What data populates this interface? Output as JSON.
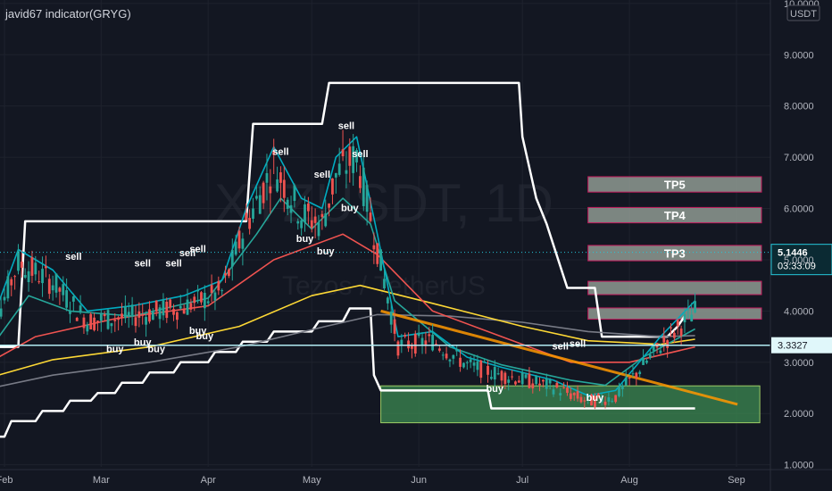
{
  "header": {
    "indicator_title": "javid67 indicator(GRYG)"
  },
  "watermark": {
    "symbol": "XTZUSDT, 1D",
    "subtitle": "Tezos / TetherUS"
  },
  "chart_data": {
    "type": "candlestick",
    "symbol": "XTZUSDT",
    "timeframe": "1D",
    "currency": "USDT",
    "ylim": [
      0.75,
      10.05
    ],
    "y_ticks": [
      "10.0000",
      "9.0000",
      "8.0000",
      "7.0000",
      "6.0000",
      "5.0000",
      "4.0000",
      "3.0000",
      "2.0000",
      "1.0000"
    ],
    "x_ticks": [
      "Feb",
      "Mar",
      "Apr",
      "May",
      "Jun",
      "Jul",
      "Aug",
      "Sep"
    ],
    "current_price": {
      "value": "5.1446",
      "countdown": "03:33:09",
      "color": "#26c6da"
    },
    "horizontal_level": {
      "value": "3.3327",
      "color": "#b2ebf2"
    },
    "take_profit_zones": [
      {
        "label": "TP5",
        "low": 6.32,
        "high": 6.62
      },
      {
        "label": "TP4",
        "low": 5.72,
        "high": 6.02
      },
      {
        "label": "TP3",
        "low": 4.98,
        "high": 5.28
      },
      {
        "label": "",
        "low": 4.32,
        "high": 4.58
      },
      {
        "label": "",
        "low": 3.84,
        "high": 4.06
      }
    ],
    "support_box": {
      "low": 1.82,
      "high": 2.54,
      "from": "May 21",
      "to": "Aug 31",
      "color": "#3c8a52"
    },
    "trend_line": {
      "from": [
        "May 21",
        4.0
      ],
      "to": [
        "Aug 31",
        2.18
      ],
      "color": "#ff9800"
    },
    "signals": [
      {
        "label": "sell",
        "x": "Feb 21",
        "y": 5.0
      },
      {
        "label": "buy",
        "x": "Mar 5",
        "y": 3.2
      },
      {
        "label": "buy",
        "x": "Mar 13",
        "y": 3.33
      },
      {
        "label": "buy",
        "x": "Mar 17",
        "y": 3.2
      },
      {
        "label": "sell",
        "x": "Mar 13",
        "y": 4.87
      },
      {
        "label": "sell",
        "x": "Mar 22",
        "y": 4.87
      },
      {
        "label": "sell",
        "x": "Mar 26",
        "y": 5.07
      },
      {
        "label": "sell",
        "x": "Mar 29",
        "y": 5.15
      },
      {
        "label": "buy",
        "x": "Mar 29",
        "y": 3.55
      },
      {
        "label": "buy",
        "x": "Mar 31",
        "y": 3.45
      },
      {
        "label": "sell",
        "x": "Apr 22",
        "y": 7.05
      },
      {
        "label": "buy",
        "x": "Apr 29",
        "y": 5.35
      },
      {
        "label": "sell",
        "x": "May 4",
        "y": 6.6
      },
      {
        "label": "sell",
        "x": "May 11",
        "y": 7.55
      },
      {
        "label": "sell",
        "x": "May 15",
        "y": 7.0
      },
      {
        "label": "buy",
        "x": "May 12",
        "y": 5.95
      },
      {
        "label": "buy",
        "x": "May 5",
        "y": 5.1
      },
      {
        "label": "sell",
        "x": "Jul 12",
        "y": 3.25
      },
      {
        "label": "sell",
        "x": "Jul 17",
        "y": 3.3
      },
      {
        "label": "buy",
        "x": "Jun 23",
        "y": 2.42
      },
      {
        "label": "buy",
        "x": "Jul 22",
        "y": 2.25
      }
    ],
    "series": [
      {
        "kind": "band",
        "color": "#ffffff",
        "points": [
          [
            "Jan 25",
            3.3
          ],
          [
            "Feb 5",
            3.3
          ],
          [
            "Feb 7",
            5.75
          ],
          [
            "Apr 12",
            5.75
          ],
          [
            "Apr 14",
            7.65
          ],
          [
            "May 4",
            7.65
          ],
          [
            "May 6",
            8.45
          ],
          [
            "Jun 30",
            8.45
          ],
          [
            "Jul 1",
            7.4
          ],
          [
            "Jul 5",
            6.2
          ],
          [
            "Jul 8",
            5.7
          ],
          [
            "Jul 14",
            4.45
          ],
          [
            "Jul 22",
            4.45
          ],
          [
            "Jul 24",
            3.5
          ],
          [
            "Aug 12",
            3.5
          ],
          [
            "Aug 15",
            3.7
          ],
          [
            "Aug 17",
            3.9
          ]
        ]
      },
      {
        "kind": "band",
        "color": "#ffffff",
        "points": [
          [
            "Jan 25",
            1.55
          ],
          [
            "Feb 1",
            1.55
          ],
          [
            "Feb 3",
            1.85
          ],
          [
            "Feb 10",
            1.85
          ],
          [
            "Feb 12",
            2.05
          ],
          [
            "Feb 18",
            2.05
          ],
          [
            "Feb 20",
            2.25
          ],
          [
            "Feb 26",
            2.25
          ],
          [
            "Feb 28",
            2.4
          ],
          [
            "Mar 5",
            2.4
          ],
          [
            "Mar 7",
            2.6
          ],
          [
            "Mar 13",
            2.6
          ],
          [
            "Mar 15",
            2.8
          ],
          [
            "Mar 22",
            2.8
          ],
          [
            "Mar 24",
            3.0
          ],
          [
            "Apr 1",
            3.0
          ],
          [
            "Apr 3",
            3.2
          ],
          [
            "Apr 9",
            3.2
          ],
          [
            "Apr 11",
            3.4
          ],
          [
            "Apr 18",
            3.4
          ],
          [
            "Apr 20",
            3.6
          ],
          [
            "May 1",
            3.6
          ],
          [
            "May 3",
            3.8
          ],
          [
            "May 10",
            3.8
          ],
          [
            "May 12",
            4.05
          ],
          [
            "May 18",
            4.05
          ],
          [
            "May 19",
            2.75
          ],
          [
            "May 21",
            2.45
          ],
          [
            "Jun 21",
            2.45
          ],
          [
            "Jun 22",
            2.1
          ],
          [
            "Aug 20",
            2.1
          ]
        ]
      },
      {
        "kind": "line",
        "name": "",
        "color": "#787b86",
        "points": [
          [
            "Jan 25",
            2.45
          ],
          [
            "Feb 15",
            2.75
          ],
          [
            "Mar 15",
            3.0
          ],
          [
            "Apr 10",
            3.3
          ],
          [
            "May 5",
            3.7
          ],
          [
            "May 20",
            3.93
          ],
          [
            "Jun 10",
            3.9
          ],
          [
            "Jul 1",
            3.78
          ],
          [
            "Jul 20",
            3.6
          ],
          [
            "Aug 10",
            3.5
          ],
          [
            "Aug 20",
            3.52
          ]
        ]
      },
      {
        "kind": "line",
        "name": "",
        "color": "#fdd835",
        "points": [
          [
            "Jan 25",
            2.65
          ],
          [
            "Feb 15",
            3.05
          ],
          [
            "Mar 15",
            3.3
          ],
          [
            "Apr 10",
            3.7
          ],
          [
            "May 1",
            4.3
          ],
          [
            "May 15",
            4.5
          ],
          [
            "Jun 5",
            4.15
          ],
          [
            "Jul 1",
            3.7
          ],
          [
            "Jul 20",
            3.42
          ],
          [
            "Aug 10",
            3.35
          ],
          [
            "Aug 20",
            3.45
          ]
        ]
      },
      {
        "kind": "line",
        "name": "",
        "color": "#ef5350",
        "points": [
          [
            "Jan 25",
            2.9
          ],
          [
            "Feb 10",
            3.5
          ],
          [
            "Mar 5",
            3.85
          ],
          [
            "Apr 1",
            4.1
          ],
          [
            "Apr 20",
            5.0
          ],
          [
            "May 10",
            5.5
          ],
          [
            "May 20",
            5.1
          ],
          [
            "Jun 5",
            4.0
          ],
          [
            "Jun 25",
            3.5
          ],
          [
            "Jul 15",
            3.0
          ],
          [
            "Aug 1",
            3.0
          ],
          [
            "Aug 20",
            3.3
          ]
        ]
      },
      {
        "kind": "line",
        "name": "",
        "color": "#26a69a",
        "points": [
          [
            "Jan 25",
            3.0
          ],
          [
            "Feb 8",
            4.3
          ],
          [
            "Feb 20",
            4.0
          ],
          [
            "Mar 10",
            3.9
          ],
          [
            "Apr 1",
            4.25
          ],
          [
            "Apr 15",
            5.5
          ],
          [
            "Apr 22",
            6.2
          ],
          [
            "May 1",
            5.6
          ],
          [
            "May 10",
            6.2
          ],
          [
            "May 18",
            5.7
          ],
          [
            "May 25",
            4.2
          ],
          [
            "Jun 10",
            3.3
          ],
          [
            "Jun 25",
            2.95
          ],
          [
            "Jul 15",
            2.65
          ],
          [
            "Jul 25",
            2.55
          ],
          [
            "Aug 5",
            3.1
          ],
          [
            "Aug 20",
            3.65
          ]
        ]
      },
      {
        "kind": "line",
        "name": "",
        "color": "#00acc1",
        "points": [
          [
            "Jan 25",
            3.2
          ],
          [
            "Feb 5",
            5.2
          ],
          [
            "Feb 15",
            4.8
          ],
          [
            "Feb 25",
            4.0
          ],
          [
            "Mar 10",
            4.1
          ],
          [
            "Mar 25",
            4.3
          ],
          [
            "Apr 5",
            4.6
          ],
          [
            "Apr 12",
            6.0
          ],
          [
            "Apr 20",
            7.2
          ],
          [
            "Apr 28",
            6.2
          ],
          [
            "May 4",
            6.0
          ],
          [
            "May 8",
            7.0
          ],
          [
            "May 14",
            7.4
          ],
          [
            "May 20",
            5.5
          ],
          [
            "May 26",
            3.5
          ],
          [
            "Jun 5",
            3.6
          ],
          [
            "Jun 15",
            3.1
          ],
          [
            "Jun 25",
            2.9
          ],
          [
            "Jul 10",
            2.65
          ],
          [
            "Jul 20",
            2.35
          ],
          [
            "Jul 28",
            2.45
          ],
          [
            "Aug 10",
            3.5
          ],
          [
            "Aug 20",
            4.2
          ]
        ]
      }
    ]
  }
}
